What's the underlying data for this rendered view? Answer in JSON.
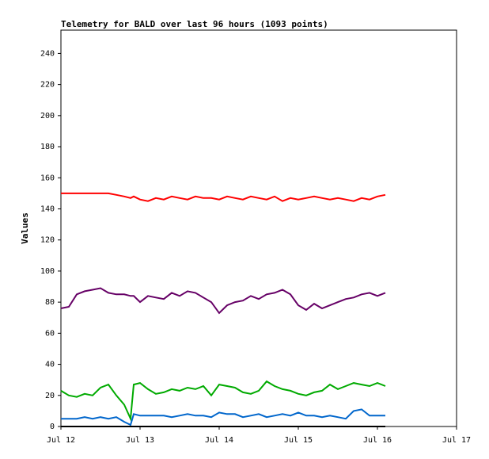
{
  "chart_data": {
    "type": "line",
    "title": "Telemetry for BALD over last 96 hours (1093 points)",
    "y_label": "Values",
    "xlim": [
      0,
      5
    ],
    "xticks": [
      {
        "value": 0,
        "label": "Jul 12"
      },
      {
        "value": 1,
        "label": "Jul 13"
      },
      {
        "value": 2,
        "label": "Jul 14"
      },
      {
        "value": 3,
        "label": "Jul 15"
      },
      {
        "value": 4,
        "label": "Jul 16"
      },
      {
        "value": 5,
        "label": "Jul 17"
      }
    ],
    "ylim": [
      0,
      255
    ],
    "yticks": [
      0,
      20,
      40,
      60,
      80,
      100,
      120,
      140,
      160,
      180,
      200,
      220,
      240
    ],
    "x": [
      0,
      0.1,
      0.2,
      0.3,
      0.4,
      0.5,
      0.6,
      0.7,
      0.8,
      0.88,
      0.92,
      1.0,
      1.1,
      1.2,
      1.3,
      1.4,
      1.5,
      1.6,
      1.7,
      1.8,
      1.9,
      2.0,
      2.1,
      2.2,
      2.3,
      2.4,
      2.5,
      2.6,
      2.7,
      2.8,
      2.9,
      3.0,
      3.1,
      3.2,
      3.3,
      3.4,
      3.5,
      3.6,
      3.7,
      3.8,
      3.9,
      4.0,
      4.1
    ],
    "series": [
      {
        "color": "#ff0000",
        "values": [
          150,
          150,
          150,
          150,
          150,
          150,
          150,
          149,
          148,
          147,
          148,
          146,
          145,
          147,
          146,
          148,
          147,
          146,
          148,
          147,
          147,
          146,
          148,
          147,
          146,
          148,
          147,
          146,
          148,
          145,
          147,
          146,
          147,
          148,
          147,
          146,
          147,
          146,
          145,
          147,
          146,
          148,
          149
        ]
      },
      {
        "color": "#660066",
        "values": [
          76,
          77,
          85,
          87,
          88,
          89,
          86,
          85,
          85,
          84,
          84,
          80,
          84,
          83,
          82,
          86,
          84,
          87,
          86,
          83,
          80,
          73,
          78,
          80,
          81,
          84,
          82,
          85,
          86,
          88,
          85,
          78,
          75,
          79,
          76,
          78,
          80,
          82,
          83,
          85,
          86,
          84,
          86
        ]
      },
      {
        "color": "#00aa00",
        "values": [
          23,
          20,
          19,
          21,
          20,
          25,
          27,
          20,
          14,
          5,
          27,
          28,
          24,
          21,
          22,
          24,
          23,
          25,
          24,
          26,
          20,
          27,
          26,
          25,
          22,
          21,
          23,
          29,
          26,
          24,
          23,
          21,
          20,
          22,
          23,
          27,
          24,
          26,
          28,
          27,
          26,
          28,
          26
        ]
      },
      {
        "color": "#0066cc",
        "values": [
          5,
          5,
          5,
          6,
          5,
          6,
          5,
          6,
          3,
          1,
          8,
          7,
          7,
          7,
          7,
          6,
          7,
          8,
          7,
          7,
          6,
          9,
          8,
          8,
          6,
          7,
          8,
          6,
          7,
          8,
          7,
          9,
          7,
          7,
          6,
          7,
          6,
          5,
          10,
          11,
          7,
          7,
          7
        ]
      },
      {
        "color": "#000000",
        "values": [
          0,
          0,
          0,
          0,
          0,
          0,
          0,
          0,
          0,
          0,
          0,
          0,
          0,
          0,
          0,
          0,
          0,
          0,
          0,
          0,
          0,
          0,
          0,
          0,
          0,
          0,
          0,
          0,
          0,
          0,
          0,
          0,
          0,
          0,
          0,
          0,
          0,
          0,
          0,
          0,
          0,
          0,
          0
        ]
      }
    ]
  }
}
